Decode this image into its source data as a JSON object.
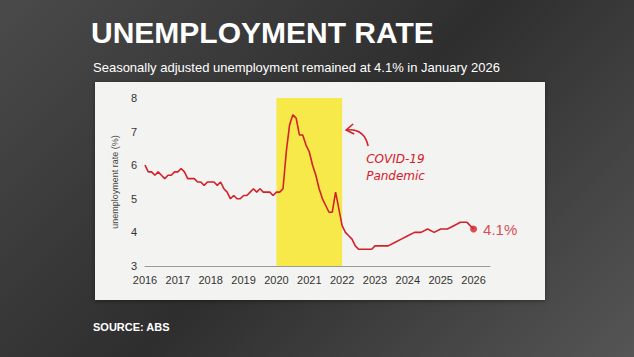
{
  "chart_data": {
    "type": "line",
    "title": "UNEMPLOYMENT RATE",
    "subtitle": "Seasonally adjusted unemployment remained at 4.1% in January 2026",
    "source": "SOURCE: ABS",
    "y_label": "unemployment rate (%)",
    "x": [
      2016.0,
      2016.1,
      2016.2,
      2016.3,
      2016.4,
      2016.5,
      2016.6,
      2016.7,
      2016.8,
      2016.9,
      2017.0,
      2017.1,
      2017.2,
      2017.3,
      2017.4,
      2017.5,
      2017.6,
      2017.7,
      2017.8,
      2017.9,
      2018.0,
      2018.1,
      2018.2,
      2018.3,
      2018.4,
      2018.5,
      2018.6,
      2018.7,
      2018.8,
      2018.9,
      2019.0,
      2019.1,
      2019.2,
      2019.3,
      2019.4,
      2019.5,
      2019.6,
      2019.7,
      2019.8,
      2019.9,
      2020.0,
      2020.1,
      2020.2,
      2020.3,
      2020.4,
      2020.5,
      2020.6,
      2020.7,
      2020.8,
      2020.9,
      2021.0,
      2021.1,
      2021.2,
      2021.3,
      2021.4,
      2021.5,
      2021.6,
      2021.7,
      2021.8,
      2021.9,
      2022.0,
      2022.1,
      2022.2,
      2022.3,
      2022.4,
      2022.5,
      2022.6,
      2022.7,
      2022.8,
      2022.9,
      2023.0,
      2023.2,
      2023.4,
      2023.6,
      2023.8,
      2024.0,
      2024.2,
      2024.4,
      2024.6,
      2024.8,
      2025.0,
      2025.2,
      2025.4,
      2025.6,
      2025.8,
      2026.0
    ],
    "values": [
      6.0,
      5.8,
      5.8,
      5.7,
      5.8,
      5.7,
      5.6,
      5.7,
      5.7,
      5.8,
      5.8,
      5.9,
      5.8,
      5.6,
      5.6,
      5.6,
      5.5,
      5.5,
      5.4,
      5.5,
      5.5,
      5.5,
      5.4,
      5.5,
      5.3,
      5.2,
      5.0,
      5.1,
      5.0,
      5.0,
      5.1,
      5.1,
      5.2,
      5.3,
      5.2,
      5.3,
      5.2,
      5.2,
      5.2,
      5.1,
      5.2,
      5.2,
      5.3,
      6.4,
      7.2,
      7.5,
      7.4,
      6.9,
      6.9,
      6.6,
      6.4,
      6.0,
      5.7,
      5.3,
      5.0,
      4.8,
      4.6,
      4.6,
      5.2,
      4.7,
      4.2,
      4.0,
      3.9,
      3.8,
      3.6,
      3.5,
      3.5,
      3.5,
      3.5,
      3.5,
      3.6,
      3.6,
      3.6,
      3.7,
      3.8,
      3.9,
      4.0,
      4.0,
      4.1,
      4.0,
      4.1,
      4.1,
      4.2,
      4.3,
      4.3,
      4.1
    ],
    "color": "#d4202a",
    "xlim": [
      2016,
      2026.5
    ],
    "xticks": [
      2016,
      2017,
      2018,
      2019,
      2020,
      2021,
      2022,
      2023,
      2024,
      2025,
      2026
    ],
    "ylim": [
      3,
      8
    ],
    "yticks": [
      3,
      4,
      5,
      6,
      7,
      8
    ],
    "grid": false,
    "annotations": [
      {
        "text": "COVID-19 Pandemic",
        "x_range": [
          2020,
          2022
        ],
        "color": "#f7e94a"
      },
      {
        "text": "4.1%",
        "x": 2026,
        "y": 4.1
      }
    ]
  }
}
